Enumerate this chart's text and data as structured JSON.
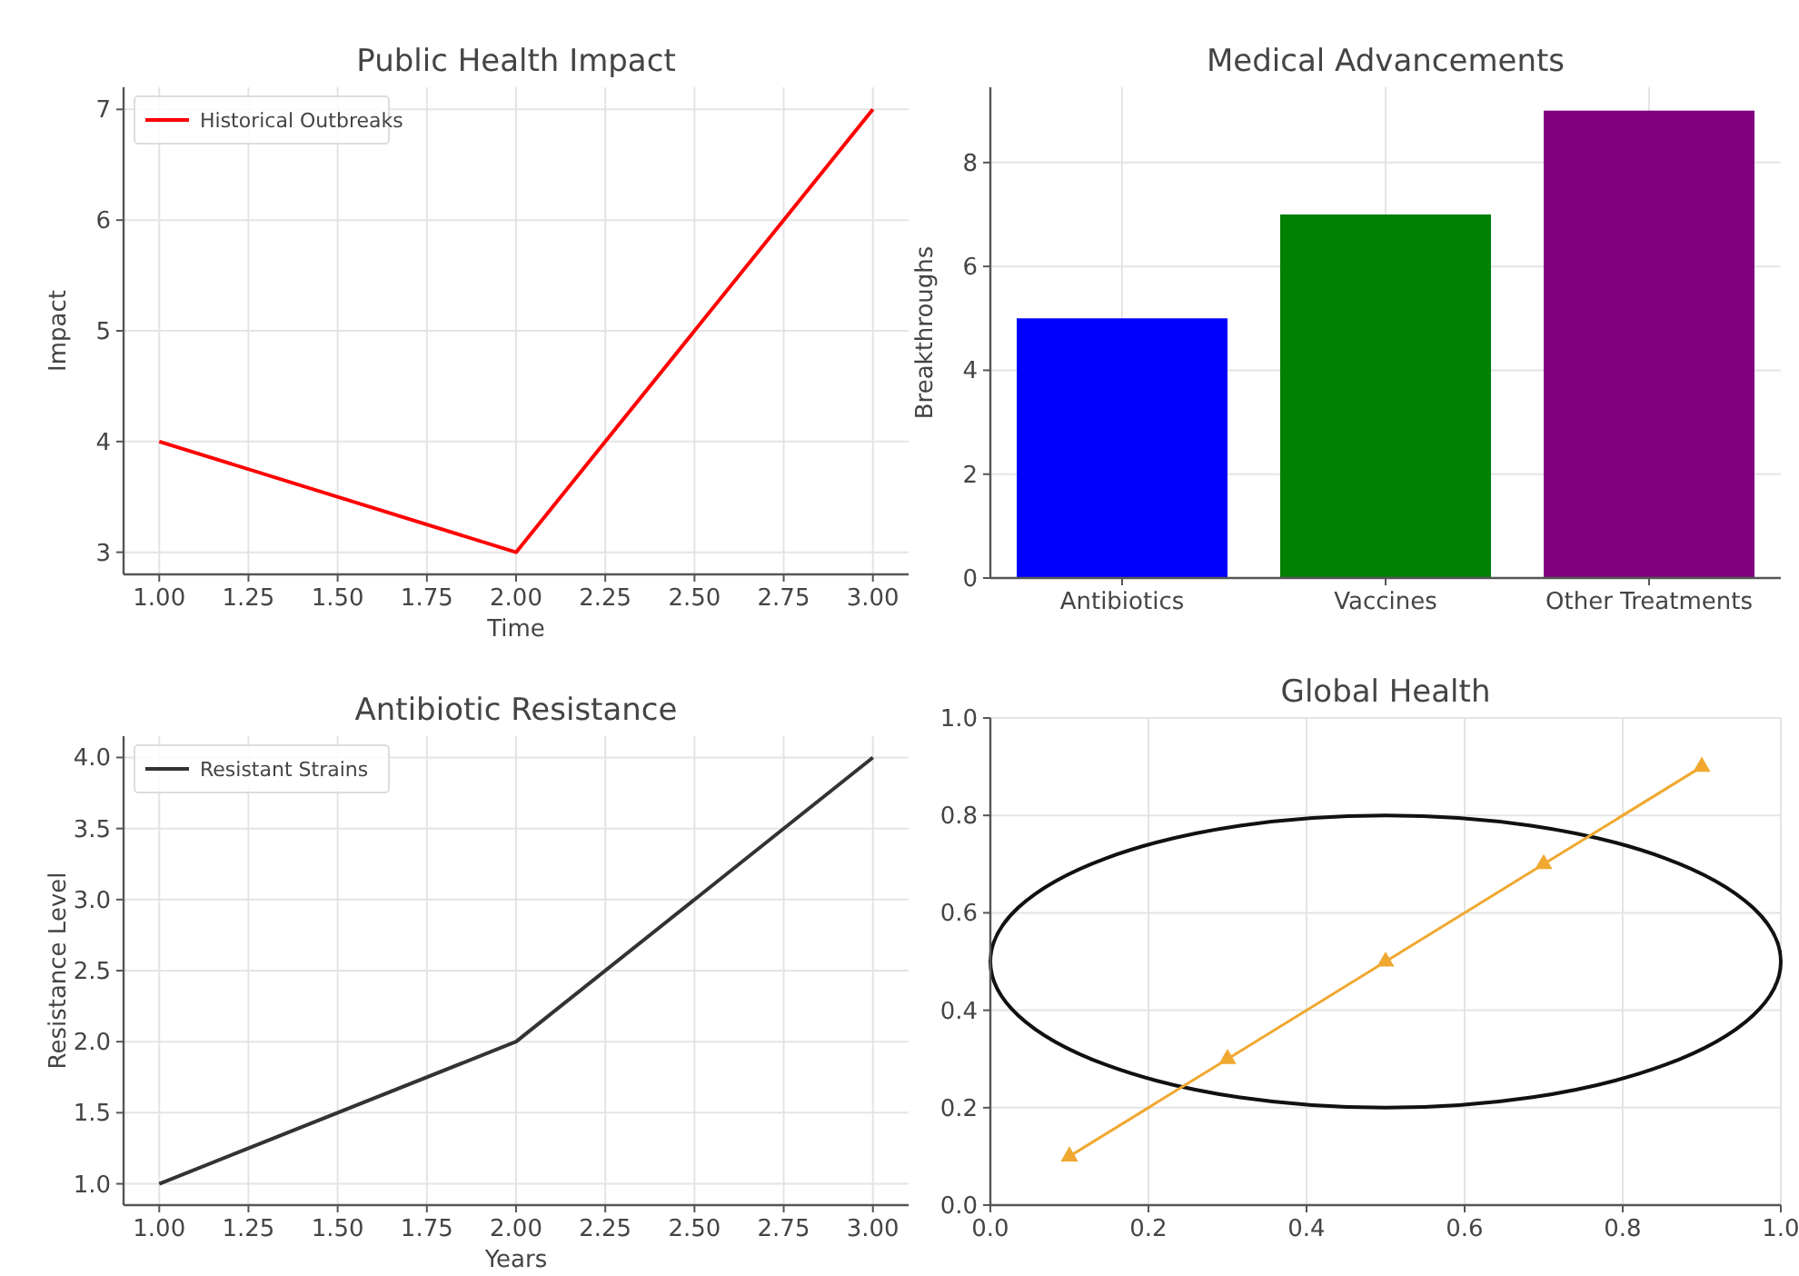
{
  "chart_data": [
    {
      "type": "line",
      "title": "Public Health Impact",
      "xlabel": "Time",
      "ylabel": "Impact",
      "x": [
        1,
        2,
        3
      ],
      "series": [
        {
          "name": "Historical Outbreaks",
          "color": "#ff0000",
          "values": [
            4,
            3,
            7
          ]
        }
      ],
      "xlim": [
        0.9,
        3.1
      ],
      "ylim": [
        2.8,
        7.2
      ],
      "xticks": [
        {
          "value": 1,
          "label": "1.00"
        },
        {
          "value": 1.25,
          "label": "1.25"
        },
        {
          "value": 1.5,
          "label": "1.50"
        },
        {
          "value": 1.75,
          "label": "1.75"
        },
        {
          "value": 2,
          "label": "2.00"
        },
        {
          "value": 2.25,
          "label": "2.25"
        },
        {
          "value": 2.5,
          "label": "2.50"
        },
        {
          "value": 2.75,
          "label": "2.75"
        },
        {
          "value": 3,
          "label": "3.00"
        }
      ],
      "yticks": [
        3,
        4,
        5,
        6,
        7
      ],
      "grid": true,
      "legend": "top left",
      "marker": "none",
      "line_style": "solid"
    },
    {
      "type": "bar",
      "title": "Medical Advancements",
      "ylabel": "Breakthroughs",
      "categories": [
        "Antibiotics",
        "Vaccines",
        "Other Treatments"
      ],
      "values": [
        5,
        7,
        9
      ],
      "colors": [
        "#0000ff",
        "#008000",
        "#800080"
      ],
      "ylim": [
        0,
        9.45
      ],
      "yticks": [
        0,
        2,
        4,
        6,
        8
      ],
      "grid": true
    },
    {
      "type": "line",
      "title": "Antibiotic Resistance",
      "xlabel": "Years",
      "ylabel": "Resistance Level",
      "x": [
        1,
        2,
        3
      ],
      "series": [
        {
          "name": "Resistant Strains",
          "color": "#333333",
          "values": [
            1,
            2,
            4
          ]
        }
      ],
      "xlim": [
        0.9,
        3.1
      ],
      "ylim": [
        0.85,
        4.15
      ],
      "xticks": [
        {
          "value": 1,
          "label": "1.00"
        },
        {
          "value": 1.25,
          "label": "1.25"
        },
        {
          "value": 1.5,
          "label": "1.50"
        },
        {
          "value": 1.75,
          "label": "1.75"
        },
        {
          "value": 2,
          "label": "2.00"
        },
        {
          "value": 2.25,
          "label": "2.25"
        },
        {
          "value": 2.5,
          "label": "2.50"
        },
        {
          "value": 2.75,
          "label": "2.75"
        },
        {
          "value": 3,
          "label": "3.00"
        }
      ],
      "yticks": [
        {
          "value": 1,
          "label": "1.0"
        },
        {
          "value": 1.5,
          "label": "1.5"
        },
        {
          "value": 2,
          "label": "2.0"
        },
        {
          "value": 2.5,
          "label": "2.5"
        },
        {
          "value": 3,
          "label": "3.0"
        },
        {
          "value": 3.5,
          "label": "3.5"
        },
        {
          "value": 4,
          "label": "4.0"
        }
      ],
      "grid": true,
      "legend": "top left",
      "marker": "none",
      "line_style": "solid"
    },
    {
      "type": "line",
      "title": "Global Health",
      "series": [
        {
          "color": "#f0a830",
          "marker": "triangle",
          "x": [
            0.1,
            0.3,
            0.5,
            0.7,
            0.9
          ],
          "values": [
            0.1,
            0.3,
            0.5,
            0.7,
            0.9
          ]
        }
      ],
      "xlim": [
        0,
        1
      ],
      "ylim": [
        0,
        1
      ],
      "xticks": [
        {
          "value": 0,
          "label": "0.0"
        },
        {
          "value": 0.2,
          "label": "0.2"
        },
        {
          "value": 0.4,
          "label": "0.4"
        },
        {
          "value": 0.6,
          "label": "0.6"
        },
        {
          "value": 0.8,
          "label": "0.8"
        },
        {
          "value": 1,
          "label": "1.0"
        }
      ],
      "yticks": [
        {
          "value": 0,
          "label": "0.0"
        },
        {
          "value": 0.2,
          "label": "0.2"
        },
        {
          "value": 0.4,
          "label": "0.4"
        },
        {
          "value": 0.6,
          "label": "0.6"
        },
        {
          "value": 0.8,
          "label": "0.8"
        },
        {
          "value": 1,
          "label": "1.0"
        }
      ],
      "grid": true,
      "line_style": "solid"
    }
  ]
}
